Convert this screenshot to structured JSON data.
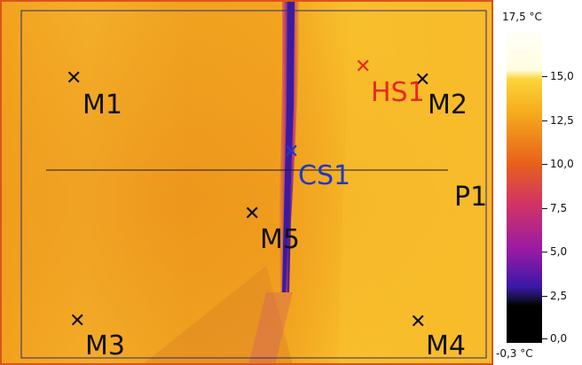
{
  "thermogram": {
    "markers": {
      "m1": "M1",
      "m2": "M2",
      "m3": "M3",
      "m4": "M4",
      "m5": "M5",
      "hs1": "HS1",
      "cs1": "CS1",
      "p1": "P1"
    },
    "colors": {
      "hot_spot": "#e8281e",
      "cold_spot": "#2038c8",
      "marker": "#111111"
    }
  },
  "scale": {
    "max_label": "17,5 °C",
    "min_label": "-0,3 °C",
    "ticks": [
      "15,0",
      "12,5",
      "10,0",
      "7,5",
      "5,0",
      "2,5",
      "0,0"
    ]
  }
}
